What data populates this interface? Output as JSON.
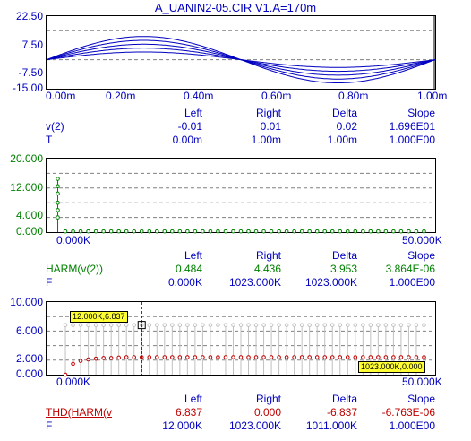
{
  "window": {
    "title": "A_UANIN2-05.CIR V1.A=170m"
  },
  "colors": {
    "blue": "#0000c0",
    "green": "#008000",
    "red": "#c00000",
    "grid": "#808080",
    "stem": "#c0c0c0"
  },
  "panel1": {
    "yticks": [
      "22.50",
      "7.50",
      "-7.50",
      "-15.00"
    ],
    "xticks": [
      "0.00m",
      "0.20m",
      "0.40m",
      "0.60m",
      "0.80m",
      "1.00m"
    ],
    "headers": [
      "Left",
      "Right",
      "Delta",
      "Slope"
    ],
    "row1": {
      "label": "v(2)",
      "values": [
        "-0.01",
        "0.01",
        "0.02",
        "1.696E01"
      ]
    },
    "row2": {
      "label": "T",
      "values": [
        "0.00m",
        "1.00m",
        "1.00m",
        "1.000E00"
      ]
    }
  },
  "panel2": {
    "yticks": [
      "20.000",
      "12.000",
      "4.000",
      "0.000"
    ],
    "xticks": [
      "0.000K",
      "50.000K"
    ],
    "headers": [
      "Left",
      "Right",
      "Delta",
      "Slope"
    ],
    "row1": {
      "label": "HARM(v(2))",
      "values": [
        "0.484",
        "4.436",
        "3.953",
        "3.864E-06"
      ]
    },
    "row2": {
      "label": "F",
      "values": [
        "0.000K",
        "1023.000K",
        "1023.000K",
        "1.000E00"
      ]
    }
  },
  "panel3": {
    "yticks": [
      "10.000",
      "6.000",
      "2.000",
      "0.000"
    ],
    "xticks": [
      "0.000K",
      "50.000K"
    ],
    "cursor_left_label": "12.000K,6.837",
    "cursor_right_label": "1023.000K,0.000",
    "headers": [
      "Left",
      "Right",
      "Delta",
      "Slope"
    ],
    "row1": {
      "label": "THD(HARM(v",
      "values": [
        "6.837",
        "0.000",
        "-6.837",
        "-6.763E-06"
      ]
    },
    "row2": {
      "label": "F",
      "values": [
        "12.000K",
        "1023.000K",
        "1011.000K",
        "1.000E00"
      ]
    }
  },
  "chart_data": [
    {
      "type": "line",
      "title": "A_UANIN2-05.CIR V1.A=170m",
      "xlim": [
        0,
        1.0
      ],
      "ylim": [
        -15,
        22.5
      ],
      "x_unit": "m",
      "series": [
        {
          "amplitude": 4.0
        },
        {
          "amplitude": 6.0
        },
        {
          "amplitude": 8.0
        },
        {
          "amplitude": 10.0
        },
        {
          "amplitude": 12.0
        }
      ],
      "grid": true
    },
    {
      "type": "scatter",
      "xlim": [
        0,
        50000
      ],
      "ylim": [
        0,
        20
      ],
      "stems": [
        {
          "x": 1000,
          "values": [
            4.0,
            6.0,
            8.0,
            10.5,
            12.5,
            14.5
          ]
        }
      ],
      "baseline_points_x_start": 2000,
      "baseline_points_x_step": 1000,
      "baseline_points_count": 48,
      "baseline_value": 0.2,
      "grid": true
    },
    {
      "type": "scatter",
      "xlim": [
        0,
        50000
      ],
      "ylim": [
        0,
        10
      ],
      "x_start": 2000,
      "x_step": 1000,
      "count": 48,
      "stem_top_value": 6.837,
      "series": [
        {
          "values": [
            0.0,
            1.5,
            1.9,
            2.1,
            2.2,
            2.3,
            2.3,
            2.35,
            2.4
          ]
        }
      ],
      "plateau_value": 2.4,
      "grid": true
    }
  ]
}
